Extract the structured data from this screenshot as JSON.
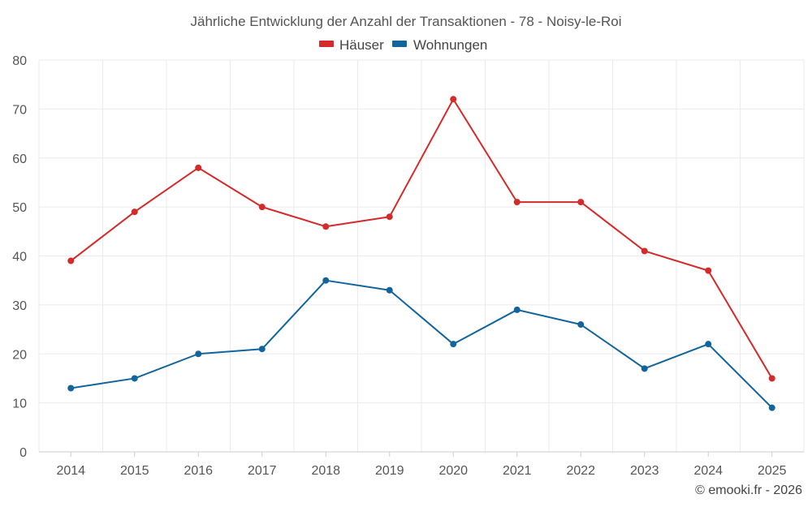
{
  "chart_data": {
    "type": "line",
    "title": "Jährliche Entwicklung der Anzahl der Transaktionen - 78 - Noisy-le-Roi",
    "categories": [
      "2014",
      "2015",
      "2016",
      "2017",
      "2018",
      "2019",
      "2020",
      "2021",
      "2022",
      "2023",
      "2024",
      "2025"
    ],
    "ylim": [
      0,
      80
    ],
    "yticks": [
      0,
      10,
      20,
      30,
      40,
      50,
      60,
      70,
      80
    ],
    "grid": true,
    "legend_position": "top-center",
    "series": [
      {
        "name": "Häuser",
        "color": "#d42a2a",
        "values": [
          39,
          49,
          58,
          50,
          46,
          48,
          72,
          51,
          51,
          41,
          37,
          15
        ]
      },
      {
        "name": "Wohnungen",
        "color": "#11659c",
        "values": [
          13,
          15,
          20,
          21,
          35,
          33,
          22,
          29,
          26,
          17,
          22,
          9
        ]
      }
    ]
  },
  "credit": "© emooki.fr - 2026"
}
